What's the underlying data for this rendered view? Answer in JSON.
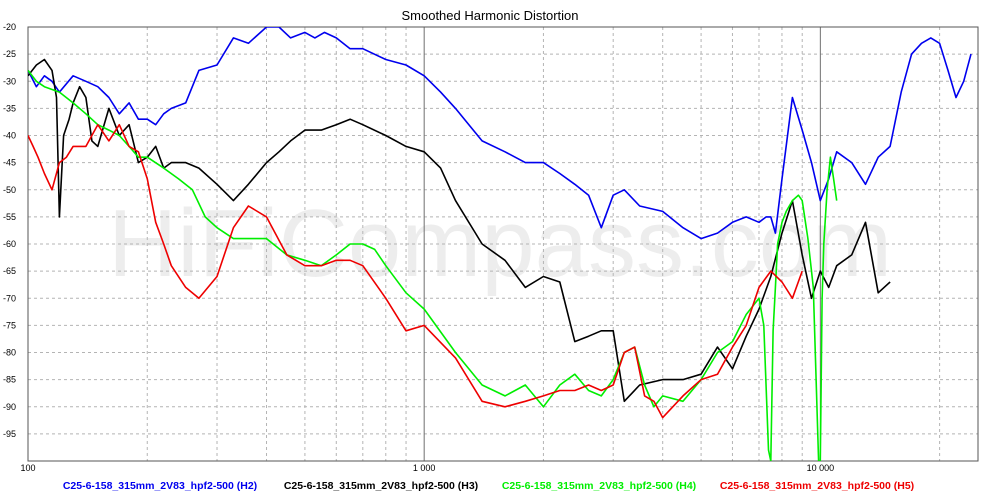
{
  "chart_data": {
    "type": "line",
    "title": "Smoothed Harmonic Distortion",
    "x_scale": "log",
    "xlim": [
      100,
      25000
    ],
    "ylim": [
      -100,
      -20
    ],
    "grid": true,
    "watermark": "HiFiCompass.com",
    "x_tick_labels": [
      {
        "value": 100,
        "label": "100"
      },
      {
        "value": 1000,
        "label": "1 000"
      },
      {
        "value": 10000,
        "label": "10 000"
      }
    ],
    "y_tick_labels": [
      {
        "value": -20,
        "label": "-20"
      },
      {
        "value": -25,
        "label": "-25"
      },
      {
        "value": -30,
        "label": "-30"
      },
      {
        "value": -35,
        "label": "-35"
      },
      {
        "value": -40,
        "label": "-40"
      },
      {
        "value": -45,
        "label": "-45"
      },
      {
        "value": -50,
        "label": "-50"
      },
      {
        "value": -55,
        "label": "-55"
      },
      {
        "value": -60,
        "label": "-60"
      },
      {
        "value": -65,
        "label": "-65"
      },
      {
        "value": -70,
        "label": "-70"
      },
      {
        "value": -75,
        "label": "-75"
      },
      {
        "value": -80,
        "label": "-80"
      },
      {
        "value": -85,
        "label": "-85"
      },
      {
        "value": -90,
        "label": "-90"
      },
      {
        "value": -95,
        "label": "-95"
      }
    ],
    "legend_position": "bottom",
    "series": [
      {
        "name": "C25-6-158_315mm_2V83_hpf2-500 (H2)",
        "color": "#0000ee",
        "x": [
          100,
          105,
          110,
          115,
          120,
          130,
          140,
          150,
          160,
          170,
          180,
          190,
          200,
          210,
          220,
          230,
          250,
          270,
          300,
          330,
          360,
          400,
          430,
          460,
          500,
          530,
          560,
          600,
          650,
          700,
          800,
          900,
          1000,
          1100,
          1200,
          1400,
          1600,
          1800,
          2000,
          2200,
          2400,
          2600,
          2800,
          3000,
          3200,
          3500,
          4000,
          4500,
          5000,
          5500,
          6000,
          6500,
          7000,
          7300,
          7500,
          7700,
          8000,
          8500,
          9000,
          9500,
          10000,
          10500,
          11000,
          12000,
          13000,
          14000,
          15000,
          16000,
          17000,
          18000,
          19000,
          20000,
          21000,
          22000,
          23000,
          24000
        ],
        "y": [
          -28,
          -31,
          -29,
          -30,
          -32,
          -29,
          -30,
          -31,
          -33,
          -36,
          -34,
          -37,
          -37,
          -38,
          -36,
          -35,
          -34,
          -28,
          -27,
          -22,
          -23,
          -20,
          -20,
          -22,
          -21,
          -22,
          -21,
          -22,
          -24,
          -24,
          -26,
          -27,
          -29,
          -32,
          -35,
          -41,
          -43,
          -45,
          -45,
          -47,
          -49,
          -51,
          -57,
          -51,
          -50,
          -53,
          -54,
          -57,
          -59,
          -58,
          -56,
          -55,
          -56,
          -55,
          -55,
          -58,
          -48,
          -33,
          -39,
          -45,
          -52,
          -48,
          -43,
          -45,
          -49,
          -44,
          -42,
          -32,
          -25,
          -23,
          -22,
          -23,
          -28,
          -33,
          -30,
          -25
        ]
      },
      {
        "name": "C25-6-158_315mm_2V83_hpf2-500 (H3)",
        "color": "#000000",
        "x": [
          100,
          105,
          110,
          115,
          118,
          120,
          123,
          127,
          130,
          135,
          140,
          145,
          150,
          160,
          170,
          180,
          190,
          200,
          210,
          220,
          230,
          250,
          270,
          300,
          330,
          360,
          400,
          430,
          460,
          500,
          550,
          600,
          650,
          700,
          800,
          900,
          1000,
          1100,
          1200,
          1400,
          1600,
          1800,
          2000,
          2200,
          2400,
          2600,
          2800,
          3000,
          3200,
          3500,
          4000,
          4500,
          5000,
          5500,
          6000,
          6500,
          7000,
          7500,
          8000,
          8500,
          9000,
          9500,
          10000,
          10500,
          11000,
          12000,
          13000,
          14000,
          15000
        ],
        "y": [
          -29,
          -27,
          -26,
          -28,
          -33,
          -55,
          -40,
          -37,
          -34,
          -31,
          -33,
          -41,
          -42,
          -35,
          -40,
          -38,
          -45,
          -44,
          -42,
          -46,
          -45,
          -45,
          -46,
          -49,
          -52,
          -49,
          -45,
          -43,
          -41,
          -39,
          -39,
          -38,
          -37,
          -38,
          -40,
          -42,
          -43,
          -46,
          -52,
          -60,
          -63,
          -68,
          -66,
          -67,
          -78,
          -77,
          -76,
          -76,
          -89,
          -86,
          -85,
          -85,
          -84,
          -79,
          -83,
          -77,
          -72,
          -66,
          -58,
          -52,
          -62,
          -70,
          -65,
          -68,
          -64,
          -62,
          -56,
          -69,
          -67
        ]
      },
      {
        "name": "C25-6-158_315mm_2V83_hpf2-500 (H4)",
        "color": "#00ee00",
        "x": [
          100,
          105,
          110,
          120,
          130,
          140,
          150,
          160,
          170,
          180,
          190,
          200,
          220,
          240,
          260,
          280,
          300,
          330,
          360,
          400,
          450,
          500,
          550,
          600,
          650,
          700,
          750,
          800,
          900,
          1000,
          1200,
          1400,
          1600,
          1800,
          2000,
          2200,
          2400,
          2600,
          2800,
          3000,
          3200,
          3400,
          3600,
          3800,
          4000,
          4500,
          5000,
          5500,
          6000,
          6500,
          7000,
          7200,
          7400,
          7500,
          7600,
          7700,
          7800,
          8000,
          8200,
          8500,
          8800,
          9000,
          9300,
          9600,
          9900,
          10000,
          10100,
          10200,
          10400,
          10600,
          10800,
          11000
        ],
        "y": [
          -28,
          -30,
          -31,
          -32,
          -34,
          -36,
          -38,
          -39,
          -40,
          -42,
          -44,
          -44,
          -46,
          -48,
          -50,
          -55,
          -57,
          -59,
          -59,
          -59,
          -62,
          -63,
          -64,
          -62,
          -60,
          -60,
          -61,
          -64,
          -69,
          -72,
          -80,
          -86,
          -88,
          -86,
          -90,
          -86,
          -84,
          -87,
          -88,
          -85,
          -80,
          -79,
          -86,
          -90,
          -88,
          -89,
          -85,
          -80,
          -78,
          -73,
          -70,
          -75,
          -98,
          -100,
          -76,
          -68,
          -60,
          -56,
          -54,
          -52,
          -51,
          -52,
          -59,
          -68,
          -100,
          -100,
          -70,
          -60,
          -50,
          -44,
          -48,
          -52
        ]
      },
      {
        "name": "C25-6-158_315mm_2V83_hpf2-500 (H5)",
        "color": "#ee0000",
        "x": [
          100,
          103,
          106,
          110,
          115,
          120,
          125,
          130,
          140,
          150,
          160,
          170,
          180,
          190,
          200,
          210,
          220,
          230,
          250,
          270,
          300,
          330,
          360,
          400,
          450,
          500,
          550,
          600,
          650,
          700,
          800,
          900,
          1000,
          1200,
          1400,
          1600,
          1800,
          2000,
          2200,
          2400,
          2600,
          2800,
          3000,
          3200,
          3400,
          3600,
          3800,
          4000,
          4500,
          5000,
          5500,
          6000,
          6500,
          7000,
          7500,
          8000,
          8500,
          9000
        ],
        "y": [
          -40,
          -42,
          -44,
          -47,
          -50,
          -45,
          -44,
          -42,
          -42,
          -38,
          -41,
          -38,
          -42,
          -43,
          -48,
          -56,
          -60,
          -64,
          -68,
          -70,
          -66,
          -57,
          -53,
          -55,
          -62,
          -64,
          -64,
          -63,
          -63,
          -64,
          -70,
          -76,
          -75,
          -81,
          -89,
          -90,
          -89,
          -88,
          -87,
          -87,
          -86,
          -87,
          -86,
          -80,
          -79,
          -88,
          -89,
          -92,
          -88,
          -85,
          -84,
          -79,
          -75,
          -68,
          -65,
          -67,
          -70,
          -65
        ]
      }
    ]
  }
}
